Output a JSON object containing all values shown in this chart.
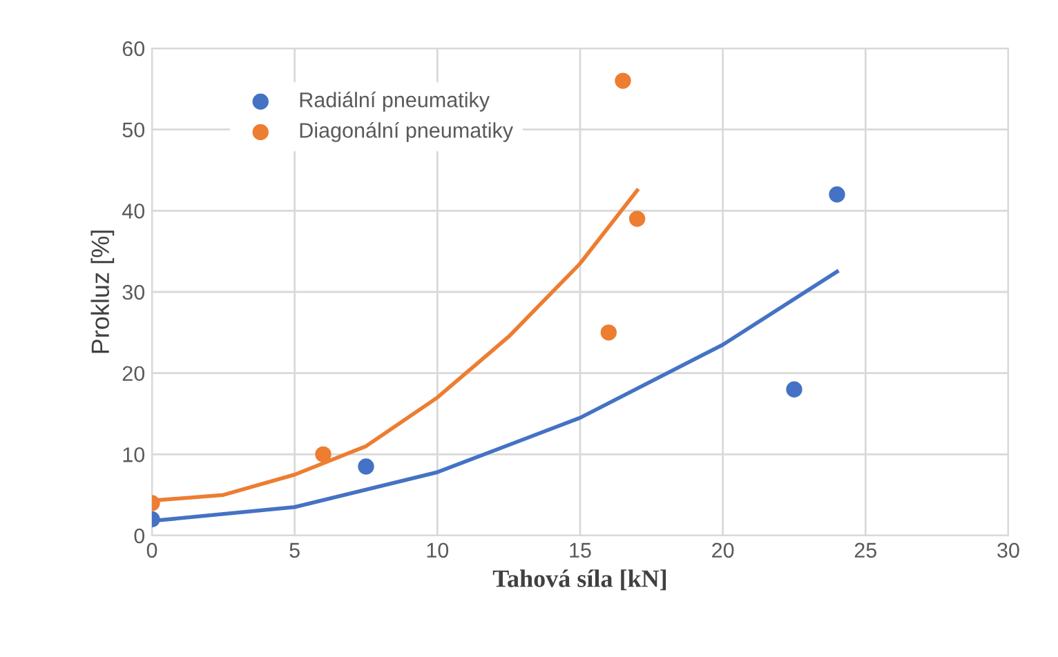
{
  "chart_data": {
    "type": "scatter",
    "xlabel": "Tahová síla [kN]",
    "ylabel": "Prokluz [%]",
    "xlim": [
      0,
      30
    ],
    "ylim": [
      0,
      60
    ],
    "xticks": [
      0,
      5,
      10,
      15,
      20,
      25,
      30
    ],
    "yticks": [
      0,
      10,
      20,
      30,
      40,
      50,
      60
    ],
    "grid": true,
    "legend": "top left",
    "series": [
      {
        "name": "Radiální pneumatiky",
        "color": "#4472c4",
        "marker": "circle",
        "x": [
          0,
          7.5,
          22.5,
          24
        ],
        "values": [
          2,
          8.5,
          18,
          42
        ]
      },
      {
        "name": "Diagonální pneumatiky",
        "color": "#ed7d31",
        "marker": "circle",
        "x": [
          0,
          6,
          16,
          16.5,
          17
        ],
        "values": [
          4,
          10,
          25,
          56,
          39
        ]
      },
      {
        "color": "#4472c4",
        "type": "line",
        "marker": "none",
        "line_style": "solid",
        "x": [
          0,
          5,
          10,
          15,
          20,
          24
        ],
        "values": [
          1.8,
          3.5,
          7.8,
          14.5,
          23.5,
          32.5
        ]
      },
      {
        "color": "#ed7d31",
        "type": "line",
        "marker": "none",
        "line_style": "solid",
        "x": [
          0,
          2.5,
          5,
          7.5,
          10,
          12.5,
          15,
          17
        ],
        "values": [
          4.3,
          5,
          7.5,
          11,
          17,
          24.5,
          33.5,
          42.5
        ]
      }
    ]
  }
}
